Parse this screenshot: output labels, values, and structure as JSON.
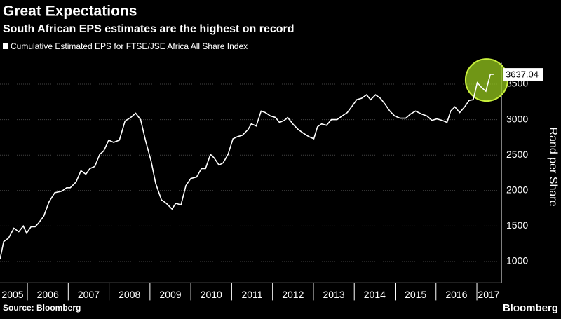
{
  "chart_data": {
    "type": "line",
    "title": "Great Expectations",
    "subtitle": "South African EPS estimates are the highest on record",
    "y_label": "Rand per Share",
    "source": "Source: Bloomberg",
    "brand": "Bloomberg",
    "x": [
      2005.33,
      2005.42,
      2005.54,
      2005.67,
      2005.79,
      2005.9,
      2005.98,
      2006.09,
      2006.19,
      2006.27,
      2006.4,
      2006.53,
      2006.67,
      2006.84,
      2006.96,
      2007.05,
      2007.19,
      2007.31,
      2007.43,
      2007.53,
      2007.65,
      2007.77,
      2007.87,
      2007.99,
      2008.11,
      2008.25,
      2008.39,
      2008.53,
      2008.65,
      2008.77,
      2008.89,
      2009.03,
      2009.14,
      2009.28,
      2009.4,
      2009.54,
      2009.63,
      2009.76,
      2009.88,
      2010.0,
      2010.14,
      2010.26,
      2010.36,
      2010.48,
      2010.57,
      2010.69,
      2010.79,
      2010.91,
      2011.03,
      2011.14,
      2011.26,
      2011.4,
      2011.48,
      2011.6,
      2011.72,
      2011.82,
      2011.95,
      2012.07,
      2012.17,
      2012.29,
      2012.37,
      2012.51,
      2012.63,
      2012.75,
      2012.89,
      2013.01,
      2013.1,
      2013.2,
      2013.32,
      2013.44,
      2013.58,
      2013.7,
      2013.83,
      2013.96,
      2014.06,
      2014.18,
      2014.3,
      2014.4,
      2014.52,
      2014.64,
      2014.75,
      2014.87,
      2014.99,
      2015.12,
      2015.26,
      2015.38,
      2015.5,
      2015.64,
      2015.78,
      2015.9,
      2016.02,
      2016.15,
      2016.27,
      2016.36,
      2016.46,
      2016.58,
      2016.7,
      2016.81,
      2016.91,
      2017.01,
      2017.12,
      2017.22,
      2017.33,
      2017.41
    ],
    "series": [
      {
        "name": "Cumulative Estimated EPS for FTSE/JSE Africa All Share Index",
        "color": "#ffffff",
        "values": [
          1030,
          1280,
          1330,
          1470,
          1420,
          1500,
          1400,
          1490,
          1490,
          1540,
          1640,
          1840,
          1970,
          1990,
          2040,
          2040,
          2120,
          2280,
          2230,
          2310,
          2340,
          2510,
          2560,
          2710,
          2680,
          2710,
          2980,
          3030,
          3090,
          3000,
          2710,
          2410,
          2100,
          1870,
          1820,
          1740,
          1820,
          1800,
          2070,
          2170,
          2190,
          2310,
          2310,
          2510,
          2460,
          2360,
          2390,
          2510,
          2730,
          2760,
          2780,
          2860,
          2940,
          2910,
          3120,
          3100,
          3050,
          3030,
          2960,
          2990,
          3030,
          2930,
          2860,
          2810,
          2760,
          2730,
          2900,
          2940,
          2920,
          3000,
          3000,
          3050,
          3100,
          3200,
          3280,
          3300,
          3350,
          3280,
          3350,
          3300,
          3220,
          3120,
          3050,
          3020,
          3020,
          3080,
          3120,
          3080,
          3050,
          2990,
          3010,
          2990,
          2960,
          3120,
          3180,
          3100,
          3180,
          3270,
          3280,
          3520,
          3450,
          3400,
          3640,
          3637.04
        ]
      }
    ],
    "xlim": [
      2005.33,
      2017.6
    ],
    "xticks": [
      2005,
      2006,
      2007,
      2008,
      2009,
      2010,
      2011,
      2012,
      2013,
      2014,
      2015,
      2016,
      2017
    ],
    "ylim": [
      700,
      3800
    ],
    "yticks": [
      1000,
      1500,
      2000,
      2500,
      3000,
      3500
    ],
    "grid": true
  }
}
